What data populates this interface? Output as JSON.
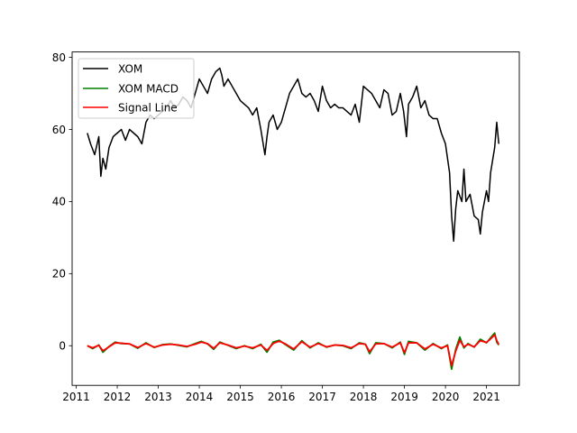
{
  "chart_data": {
    "type": "line",
    "title": "",
    "xlabel": "",
    "ylabel": "",
    "xlim": [
      2010.9,
      2021.8
    ],
    "ylim": [
      -11,
      81.5
    ],
    "xticks": [
      2011,
      2012,
      2013,
      2014,
      2015,
      2016,
      2017,
      2018,
      2019,
      2020,
      2021
    ],
    "yticks": [
      0,
      20,
      40,
      60,
      80
    ],
    "grid": false,
    "legend_position": "top-left",
    "series": [
      {
        "name": "XOM",
        "color": "#000000",
        "x": [
          2011.27,
          2011.35,
          2011.45,
          2011.55,
          2011.6,
          2011.65,
          2011.72,
          2011.8,
          2011.9,
          2012.0,
          2012.1,
          2012.2,
          2012.3,
          2012.4,
          2012.5,
          2012.6,
          2012.7,
          2012.8,
          2012.9,
          2013.0,
          2013.1,
          2013.2,
          2013.3,
          2013.4,
          2013.5,
          2013.6,
          2013.7,
          2013.8,
          2013.9,
          2014.0,
          2014.1,
          2014.2,
          2014.3,
          2014.4,
          2014.5,
          2014.55,
          2014.6,
          2014.7,
          2014.8,
          2014.9,
          2015.0,
          2015.1,
          2015.2,
          2015.3,
          2015.4,
          2015.5,
          2015.6,
          2015.65,
          2015.7,
          2015.8,
          2015.9,
          2016.0,
          2016.1,
          2016.2,
          2016.3,
          2016.4,
          2016.5,
          2016.6,
          2016.7,
          2016.8,
          2016.9,
          2017.0,
          2017.1,
          2017.2,
          2017.3,
          2017.4,
          2017.5,
          2017.6,
          2017.7,
          2017.8,
          2017.9,
          2018.0,
          2018.1,
          2018.2,
          2018.3,
          2018.4,
          2018.5,
          2018.6,
          2018.7,
          2018.8,
          2018.9,
          2018.98,
          2019.05,
          2019.1,
          2019.2,
          2019.3,
          2019.4,
          2019.5,
          2019.6,
          2019.7,
          2019.8,
          2019.9,
          2020.0,
          2020.1,
          2020.15,
          2020.2,
          2020.25,
          2020.3,
          2020.4,
          2020.45,
          2020.5,
          2020.6,
          2020.7,
          2020.8,
          2020.85,
          2020.9,
          2021.0,
          2021.05,
          2021.1,
          2021.2,
          2021.25,
          2021.3
        ],
        "values": [
          59,
          56,
          53,
          58,
          47,
          52,
          49,
          55,
          58,
          59,
          60,
          57,
          60,
          59,
          58,
          56,
          62,
          64,
          63,
          64,
          65,
          66,
          68,
          66,
          67,
          69,
          68,
          66,
          70,
          74,
          72,
          70,
          74,
          76,
          77,
          75,
          72,
          74,
          72,
          70,
          68,
          67,
          66,
          64,
          66,
          60,
          53,
          58,
          62,
          64,
          60,
          62,
          66,
          70,
          72,
          74,
          70,
          69,
          70,
          68,
          65,
          72,
          68,
          66,
          67,
          66,
          66,
          65,
          64,
          67,
          62,
          72,
          71,
          70,
          68,
          66,
          71,
          70,
          64,
          65,
          70,
          65,
          58,
          67,
          69,
          72,
          66,
          68,
          64,
          63,
          63,
          59,
          56,
          48,
          36,
          29,
          38,
          43,
          40,
          49,
          40,
          42,
          36,
          35,
          31,
          37,
          43,
          40,
          48,
          55,
          62,
          56
        ]
      },
      {
        "name": "XOM MACD",
        "color": "#008000",
        "x": [
          2011.27,
          2011.4,
          2011.55,
          2011.65,
          2011.8,
          2011.95,
          2012.1,
          2012.3,
          2012.5,
          2012.7,
          2012.9,
          2013.1,
          2013.3,
          2013.5,
          2013.7,
          2013.9,
          2014.05,
          2014.2,
          2014.35,
          2014.5,
          2014.7,
          2014.9,
          2015.1,
          2015.3,
          2015.5,
          2015.65,
          2015.8,
          2015.95,
          2016.1,
          2016.3,
          2016.5,
          2016.7,
          2016.9,
          2017.1,
          2017.3,
          2017.5,
          2017.7,
          2017.9,
          2018.05,
          2018.15,
          2018.3,
          2018.5,
          2018.7,
          2018.9,
          2019.0,
          2019.1,
          2019.3,
          2019.5,
          2019.7,
          2019.9,
          2020.05,
          2020.15,
          2020.25,
          2020.35,
          2020.45,
          2020.55,
          2020.7,
          2020.85,
          2021.0,
          2021.1,
          2021.2,
          2021.25,
          2021.3
        ],
        "values": [
          0.0,
          -0.8,
          0.2,
          -1.8,
          -0.2,
          1.0,
          0.6,
          0.5,
          -0.7,
          0.8,
          -0.5,
          0.3,
          0.5,
          0.1,
          -0.3,
          0.6,
          1.2,
          0.5,
          -1.0,
          1.0,
          0.1,
          -0.8,
          0.0,
          -0.8,
          0.4,
          -1.8,
          1.0,
          1.5,
          0.3,
          -1.2,
          1.4,
          -0.6,
          0.8,
          -0.4,
          0.2,
          0.0,
          -0.8,
          0.8,
          0.4,
          -2.2,
          0.8,
          0.6,
          -0.6,
          1.0,
          -2.4,
          1.2,
          0.8,
          -1.2,
          0.6,
          -0.8,
          0.2,
          -6.5,
          -1.0,
          2.4,
          -0.6,
          0.6,
          -0.4,
          1.8,
          0.8,
          2.2,
          3.5,
          1.0,
          0.2
        ]
      },
      {
        "name": "Signal Line",
        "color": "#ff0000",
        "x": [
          2011.27,
          2011.4,
          2011.55,
          2011.65,
          2011.8,
          2011.95,
          2012.1,
          2012.3,
          2012.5,
          2012.7,
          2012.9,
          2013.1,
          2013.3,
          2013.5,
          2013.7,
          2013.9,
          2014.05,
          2014.2,
          2014.35,
          2014.5,
          2014.7,
          2014.9,
          2015.1,
          2015.3,
          2015.5,
          2015.65,
          2015.8,
          2015.95,
          2016.1,
          2016.3,
          2016.5,
          2016.7,
          2016.9,
          2017.1,
          2017.3,
          2017.5,
          2017.7,
          2017.9,
          2018.05,
          2018.15,
          2018.3,
          2018.5,
          2018.7,
          2018.9,
          2019.0,
          2019.1,
          2019.3,
          2019.5,
          2019.7,
          2019.9,
          2020.05,
          2020.15,
          2020.25,
          2020.35,
          2020.45,
          2020.55,
          2020.7,
          2020.85,
          2021.0,
          2021.1,
          2021.2,
          2021.25,
          2021.3
        ],
        "values": [
          0.0,
          -0.6,
          0.1,
          -1.4,
          -0.3,
          0.8,
          0.7,
          0.5,
          -0.5,
          0.6,
          -0.4,
          0.2,
          0.4,
          0.2,
          -0.2,
          0.4,
          1.0,
          0.6,
          -0.7,
          0.8,
          0.2,
          -0.6,
          -0.1,
          -0.6,
          0.2,
          -1.3,
          0.6,
          1.3,
          0.5,
          -0.9,
          1.1,
          -0.4,
          0.6,
          -0.3,
          0.2,
          0.1,
          -0.6,
          0.6,
          0.4,
          -1.7,
          0.5,
          0.6,
          -0.4,
          0.8,
          -1.9,
          0.8,
          0.8,
          -0.9,
          0.4,
          -0.6,
          0.0,
          -5.5,
          -1.5,
          1.5,
          -0.3,
          0.4,
          -0.3,
          1.4,
          0.9,
          1.9,
          3.0,
          1.5,
          0.3
        ]
      }
    ]
  }
}
